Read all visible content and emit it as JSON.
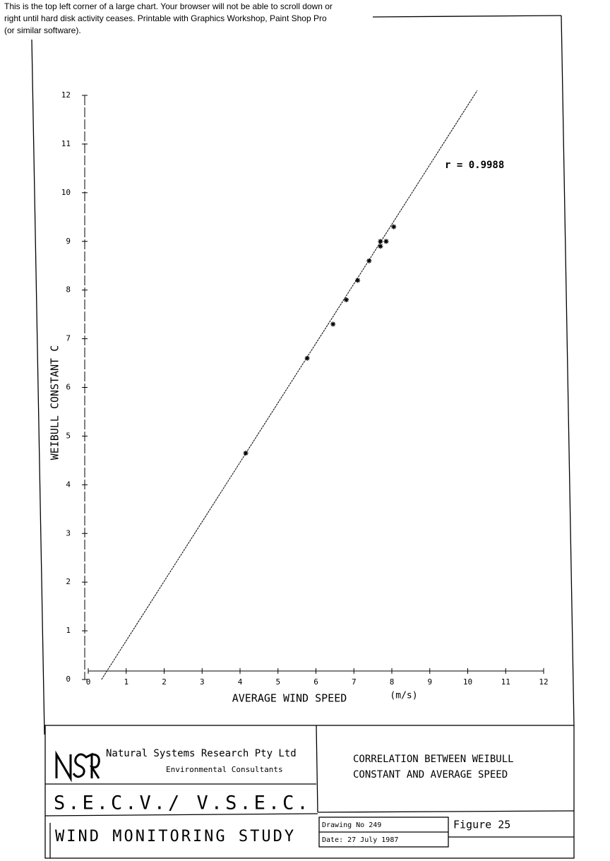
{
  "notice": [
    "This is the top left corner of a large chart. Your browser will not be able to scroll down    or",
    "right until hard disk activity ceases. Printable with Graphics Workshop, Paint Shop Pro",
    "(or similar software)."
  ],
  "chart_data": {
    "type": "scatter",
    "x_label": "AVERAGE WIND SPEED",
    "x_unit": "(m/s)",
    "y_label": "WEIBULL CONSTANT C",
    "annotation": "r = 0.9988",
    "x": [
      4.15,
      5.77,
      6.45,
      6.8,
      7.1,
      7.4,
      7.7,
      7.7,
      7.85,
      8.05
    ],
    "y": [
      4.65,
      6.6,
      7.3,
      7.8,
      8.2,
      8.6,
      8.9,
      9.0,
      9.0,
      9.3
    ],
    "fit_line": {
      "x": [
        0.35,
        10.25
      ],
      "y": [
        0,
        12.1
      ]
    },
    "color": "#000000",
    "xlim": [
      0,
      12
    ],
    "ylim": [
      0,
      12
    ],
    "xticks": [
      0,
      1,
      2,
      3,
      4,
      5,
      6,
      7,
      8,
      9,
      10,
      11,
      12
    ],
    "yticks": [
      0,
      1,
      2,
      3,
      4,
      5,
      6,
      7,
      8,
      9,
      10,
      11,
      12
    ]
  },
  "title_block": {
    "company": "Natural Systems Research Pty Ltd",
    "subtitle": "Environmental Consultants",
    "chart_title": [
      "CORRELATION BETWEEN WEIBULL",
      "CONSTANT AND AVERAGE SPEED"
    ],
    "client": "S.E.C.V./ V.S.E.C.",
    "project": "WIND MONITORING STUDY",
    "drawing_no": "Drawing No 249",
    "date": "Date: 27 July 1987",
    "figure": "Figure  25"
  }
}
